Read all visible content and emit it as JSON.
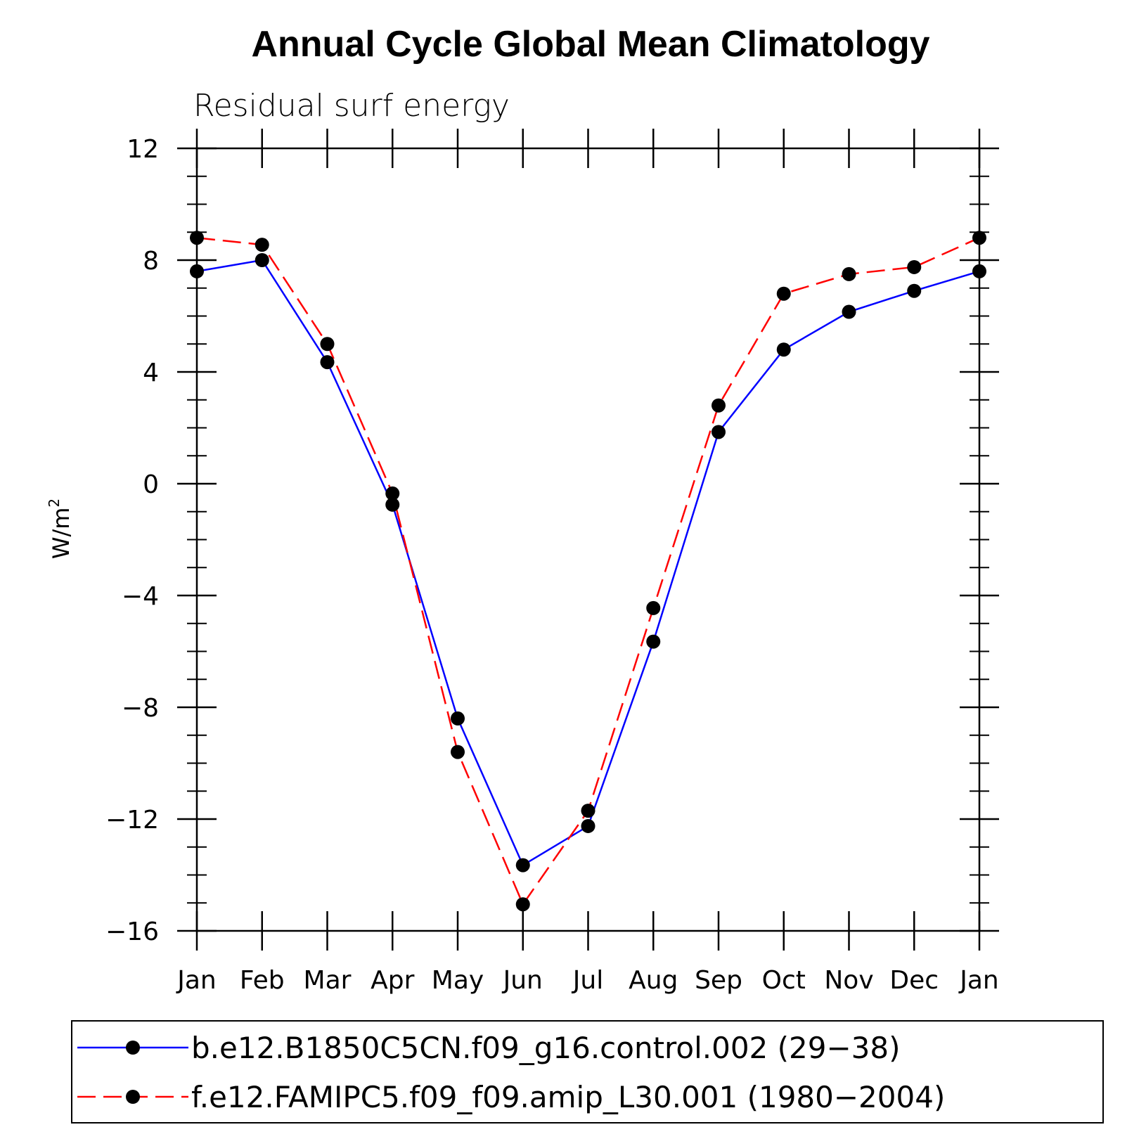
{
  "chart_data": {
    "type": "line",
    "title": "Annual Cycle Global Mean Climatology",
    "subtitle": "Residual surf energy",
    "xlabel": "",
    "ylabel": "W/m",
    "ylabel_superscript": "2",
    "categories": [
      "Jan",
      "Feb",
      "Mar",
      "Apr",
      "May",
      "Jun",
      "Jul",
      "Aug",
      "Sep",
      "Oct",
      "Nov",
      "Dec",
      "Jan"
    ],
    "ylim": [
      -16,
      12
    ],
    "yticks": [
      -16,
      -12,
      -8,
      -4,
      0,
      4,
      8,
      12
    ],
    "ytick_labels": [
      "−16",
      "−12",
      "−8",
      "−4",
      "0",
      "4",
      "8",
      "12"
    ],
    "grid": false,
    "series": [
      {
        "name": "b.e12.B1850C5CN.f09_g16.control.002 (29−38)",
        "color": "#0000ff",
        "style": "solid",
        "marker": "filled-circle",
        "values": [
          7.6,
          8.0,
          4.35,
          -0.75,
          -8.4,
          -13.65,
          -12.25,
          -5.65,
          1.85,
          4.8,
          6.15,
          6.9,
          7.6
        ]
      },
      {
        "name": "f.e12.FAMIPC5.f09_f09.amip_L30.001 (1980−2004)",
        "color": "#ff0000",
        "style": "dashed",
        "marker": "filled-circle",
        "values": [
          8.8,
          8.55,
          5.0,
          -0.35,
          -9.6,
          -15.05,
          -11.7,
          -4.45,
          2.8,
          6.8,
          7.5,
          7.75,
          8.8
        ]
      }
    ],
    "legend_position": "bottom"
  }
}
